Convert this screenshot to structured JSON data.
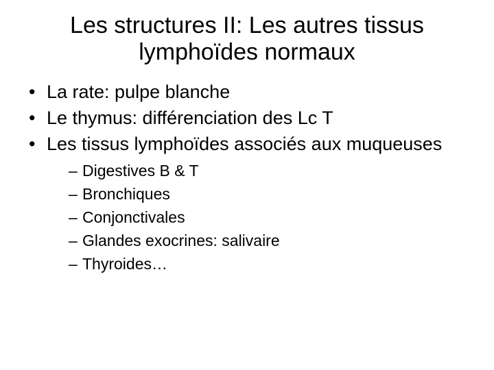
{
  "slide": {
    "title": "Les structures II: Les autres tissus lymphoïdes normaux",
    "title_fontsize": 34,
    "title_align": "center",
    "body_fontsize": 27,
    "sub_fontsize": 23,
    "text_color": "#000000",
    "background_color": "#ffffff",
    "bullets": [
      {
        "text": "La rate: pulpe blanche"
      },
      {
        "text": "Le thymus: différenciation des Lc T"
      },
      {
        "text": "Les tissus lymphoïdes associés aux muqueuses",
        "sub": [
          "Digestives B & T",
          "Bronchiques",
          "Conjonctivales",
          "Glandes exocrines: salivaire",
          "Thyroides…"
        ]
      }
    ]
  }
}
